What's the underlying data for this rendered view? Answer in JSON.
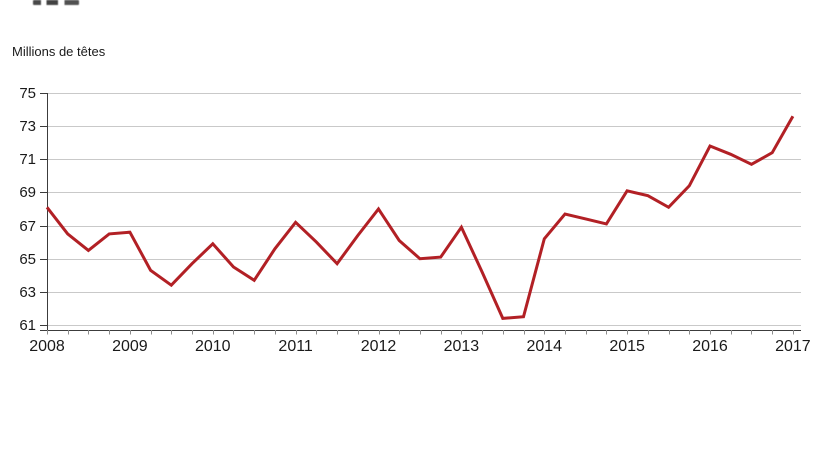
{
  "page": {
    "background_color": "#ffffff",
    "text_color": "#1a1a1a"
  },
  "chart_data": {
    "type": "line",
    "title": "",
    "unit_label": "Millions de têtes",
    "frequency": "quarterly",
    "legend": "none",
    "grid": "horizontal-only",
    "xlabel": "",
    "ylabel": "Millions de têtes",
    "ylim": [
      61,
      75
    ],
    "y_ticks": [
      "75",
      "73",
      "71",
      "69",
      "67",
      "65",
      "63",
      "61"
    ],
    "y_tick_values": [
      75,
      73,
      71,
      69,
      67,
      65,
      63,
      61
    ],
    "x_tick_years": [
      "2008",
      "2009",
      "2010",
      "2011",
      "2012",
      "2013",
      "2014",
      "2015",
      "2016",
      "2017"
    ],
    "x": [
      "2008-T1",
      "2008-T2",
      "2008-T3",
      "2008-T4",
      "2009-T1",
      "2009-T2",
      "2009-T3",
      "2009-T4",
      "2010-T1",
      "2010-T2",
      "2010-T3",
      "2010-T4",
      "2011-T1",
      "2011-T2",
      "2011-T3",
      "2011-T4",
      "2012-T1",
      "2012-T2",
      "2012-T3",
      "2012-T4",
      "2013-T1",
      "2013-T2",
      "2013-T3",
      "2013-T4",
      "2014-T1",
      "2014-T2",
      "2014-T3",
      "2014-T4",
      "2015-T1",
      "2015-T2",
      "2015-T3",
      "2015-T4",
      "2016-T1",
      "2016-T2",
      "2016-T3",
      "2016-T4",
      "2017-T1"
    ],
    "values": [
      68.1,
      66.5,
      65.5,
      66.5,
      66.6,
      64.3,
      63.4,
      64.7,
      65.9,
      64.5,
      63.7,
      65.6,
      67.2,
      66.0,
      64.7,
      66.4,
      68.0,
      66.1,
      65.0,
      65.1,
      66.9,
      64.2,
      61.4,
      61.5,
      66.2,
      67.7,
      67.4,
      67.1,
      69.1,
      68.8,
      68.1,
      69.4,
      71.8,
      71.3,
      70.7,
      71.4,
      73.6
    ],
    "line_color": "#b22025",
    "line_width": 3,
    "gridline_color": "#c9c9c9",
    "axis_color": "#3c3c3c",
    "minor_tick_color": "#8c8c8c"
  }
}
